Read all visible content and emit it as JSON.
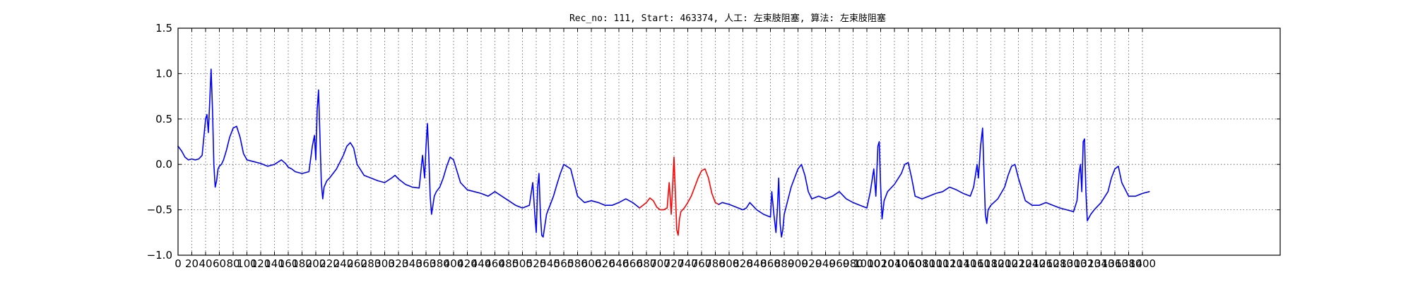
{
  "chart_data": {
    "type": "line",
    "title": "Rec_no: 111, Start: 463374, 人工: 左束肢阻塞, 算法: 左束肢阻塞",
    "xlabel": "",
    "ylabel": "",
    "xlim": [
      0,
      1600
    ],
    "ylim": [
      -1.0,
      1.5
    ],
    "grid": true,
    "yticks": [
      -1.0,
      -0.5,
      0.0,
      0.5,
      1.0,
      1.5
    ],
    "ytick_labels": [
      "−1.0",
      "−0.5",
      "0.0",
      "0.5",
      "1.0",
      "1.5"
    ],
    "xticks": [
      0,
      20,
      40,
      60,
      80,
      100,
      120,
      140,
      160,
      180,
      200,
      220,
      240,
      260,
      280,
      300,
      320,
      340,
      360,
      380,
      400,
      420,
      440,
      460,
      480,
      500,
      520,
      540,
      560,
      580,
      600,
      620,
      640,
      660,
      680,
      700,
      720,
      740,
      760,
      780,
      800,
      820,
      840,
      860,
      880,
      900,
      920,
      940,
      960,
      980,
      1000,
      1020,
      1040,
      1060,
      1080,
      1100,
      1120,
      1140,
      1160,
      1180,
      1200,
      1220,
      1240,
      1260,
      1280,
      1300,
      1320,
      1340,
      1360,
      1380,
      1400
    ],
    "colors": {
      "normal": "#0000ff",
      "highlight": "#ff0000",
      "grid": "#555555"
    },
    "series": [
      {
        "color": "#0000ff",
        "x": [
          0,
          5,
          10,
          15,
          20,
          25,
          30,
          35,
          40,
          42,
          44,
          46,
          48,
          50,
          52,
          54,
          56,
          58,
          60,
          63,
          66,
          70,
          75,
          80,
          85,
          90,
          95,
          100,
          110,
          120,
          130,
          140,
          150,
          153,
          156,
          160,
          165,
          170,
          180,
          190,
          195,
          198,
          200,
          202,
          204,
          206,
          208,
          210,
          212,
          216,
          220,
          230,
          240,
          245,
          250,
          255,
          260,
          270,
          280,
          290,
          300,
          310,
          315,
          320,
          330,
          340,
          350,
          355,
          358,
          360,
          362,
          364,
          366,
          368,
          370,
          372,
          375,
          380,
          385,
          390,
          395,
          400,
          410,
          420,
          430,
          440,
          450,
          460,
          470,
          480,
          490,
          500,
          510,
          515,
          518,
          520,
          522,
          524,
          526,
          528,
          530,
          532,
          535,
          540,
          545,
          550,
          555,
          560,
          570,
          580,
          590,
          600,
          610,
          620,
          630,
          640,
          650,
          660,
          670
        ],
        "y": [
          0.2,
          0.15,
          0.08,
          0.05,
          0.06,
          0.05,
          0.06,
          0.1,
          0.5,
          0.55,
          0.35,
          0.7,
          1.05,
          0.6,
          0.0,
          -0.25,
          -0.18,
          -0.05,
          -0.02,
          0.0,
          0.05,
          0.15,
          0.3,
          0.4,
          0.42,
          0.3,
          0.12,
          0.05,
          0.03,
          0.01,
          -0.02,
          0.0,
          0.05,
          0.03,
          0.01,
          -0.03,
          -0.05,
          -0.08,
          -0.1,
          -0.08,
          0.2,
          0.32,
          0.05,
          0.6,
          0.82,
          0.3,
          -0.2,
          -0.38,
          -0.25,
          -0.18,
          -0.15,
          -0.05,
          0.1,
          0.2,
          0.24,
          0.18,
          0.0,
          -0.12,
          -0.15,
          -0.18,
          -0.2,
          -0.15,
          -0.12,
          -0.16,
          -0.22,
          -0.25,
          -0.26,
          0.1,
          -0.15,
          0.2,
          0.45,
          0.1,
          -0.35,
          -0.55,
          -0.45,
          -0.35,
          -0.3,
          -0.25,
          -0.15,
          -0.02,
          0.08,
          0.05,
          -0.2,
          -0.28,
          -0.3,
          -0.32,
          -0.35,
          -0.3,
          -0.35,
          -0.4,
          -0.45,
          -0.48,
          -0.45,
          -0.2,
          -0.55,
          -0.75,
          -0.25,
          -0.1,
          -0.55,
          -0.78,
          -0.8,
          -0.7,
          -0.55,
          -0.45,
          -0.35,
          -0.22,
          -0.1,
          0.0,
          -0.05,
          -0.35,
          -0.42,
          -0.4,
          -0.42,
          -0.45,
          -0.45,
          -0.42,
          -0.38,
          -0.42,
          -0.48
        ]
      },
      {
        "color": "#ff0000",
        "x": [
          670,
          680,
          685,
          690,
          695,
          700,
          705,
          710,
          713,
          716,
          718,
          720,
          722,
          724,
          726,
          728,
          730,
          735,
          740,
          745,
          750,
          755,
          760,
          765,
          770,
          775,
          780,
          785
        ],
        "y": [
          -0.48,
          -0.42,
          -0.37,
          -0.4,
          -0.47,
          -0.5,
          -0.5,
          -0.48,
          -0.2,
          -0.55,
          -0.25,
          0.08,
          -0.3,
          -0.72,
          -0.78,
          -0.6,
          -0.52,
          -0.48,
          -0.42,
          -0.35,
          -0.25,
          -0.15,
          -0.07,
          -0.05,
          -0.15,
          -0.32,
          -0.42,
          -0.44
        ]
      },
      {
        "color": "#0000ff",
        "x": [
          785,
          790,
          800,
          810,
          820,
          825,
          830,
          840,
          850,
          860,
          862,
          865,
          868,
          870,
          872,
          874,
          876,
          878,
          880,
          885,
          890,
          895,
          900,
          905,
          910,
          915,
          920,
          930,
          940,
          950,
          960,
          970,
          980,
          990,
          1000,
          1005,
          1010,
          1013,
          1016,
          1018,
          1020,
          1022,
          1025,
          1030,
          1040,
          1050,
          1055,
          1060,
          1065,
          1070,
          1080,
          1090,
          1100,
          1110,
          1120,
          1130,
          1140,
          1150,
          1155,
          1160,
          1162,
          1165,
          1168,
          1170,
          1172,
          1174,
          1176,
          1180,
          1190,
          1200,
          1205,
          1210,
          1215,
          1220,
          1230,
          1240,
          1250,
          1260,
          1270,
          1280,
          1290,
          1300,
          1305,
          1308,
          1310,
          1312,
          1314,
          1316,
          1318,
          1320,
          1325,
          1330,
          1340,
          1350,
          1355,
          1360,
          1365,
          1370,
          1380,
          1390,
          1400,
          1410
        ],
        "y": [
          -0.44,
          -0.42,
          -0.44,
          -0.47,
          -0.5,
          -0.48,
          -0.42,
          -0.5,
          -0.55,
          -0.58,
          -0.3,
          -0.55,
          -0.75,
          -0.5,
          -0.15,
          -0.65,
          -0.8,
          -0.72,
          -0.55,
          -0.4,
          -0.25,
          -0.15,
          -0.05,
          0.0,
          -0.12,
          -0.3,
          -0.38,
          -0.35,
          -0.38,
          -0.35,
          -0.3,
          -0.38,
          -0.42,
          -0.45,
          -0.48,
          -0.3,
          -0.05,
          -0.35,
          0.2,
          0.25,
          -0.25,
          -0.6,
          -0.4,
          -0.3,
          -0.22,
          -0.1,
          0.0,
          0.02,
          -0.15,
          -0.35,
          -0.38,
          -0.35,
          -0.32,
          -0.3,
          -0.25,
          -0.28,
          -0.32,
          -0.35,
          -0.25,
          0.0,
          -0.15,
          0.2,
          0.4,
          -0.1,
          -0.55,
          -0.65,
          -0.5,
          -0.45,
          -0.38,
          -0.25,
          -0.12,
          -0.02,
          0.0,
          -0.15,
          -0.4,
          -0.45,
          -0.45,
          -0.42,
          -0.45,
          -0.48,
          -0.5,
          -0.52,
          -0.4,
          -0.1,
          0.0,
          -0.3,
          0.25,
          0.28,
          -0.3,
          -0.62,
          -0.55,
          -0.5,
          -0.42,
          -0.3,
          -0.15,
          -0.05,
          -0.02,
          -0.2,
          -0.35,
          -0.35,
          -0.32,
          -0.3
        ]
      }
    ]
  }
}
